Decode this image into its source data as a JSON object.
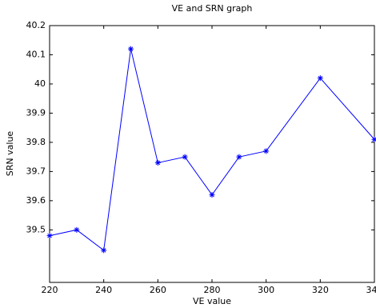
{
  "chart_data": {
    "type": "line",
    "title": "VE and SRN graph",
    "x_label": "VE value",
    "y_label": "SRN value",
    "x": [
      220,
      230,
      240,
      250,
      260,
      270,
      280,
      290,
      300,
      320,
      340
    ],
    "series": [
      {
        "color": "#0000ff",
        "marker": "*",
        "values": [
          39.48,
          39.5,
          39.43,
          40.12,
          39.73,
          39.75,
          39.62,
          39.75,
          39.77,
          40.02,
          39.81
        ]
      }
    ],
    "xlim": [
      220,
      340
    ],
    "xticks": [
      220,
      240,
      260,
      280,
      300,
      320,
      340
    ],
    "ylim": [
      39.32,
      40.2
    ],
    "yticks": [
      39.5,
      39.6,
      39.7,
      39.8,
      39.9,
      40,
      40.1,
      40.2
    ]
  }
}
